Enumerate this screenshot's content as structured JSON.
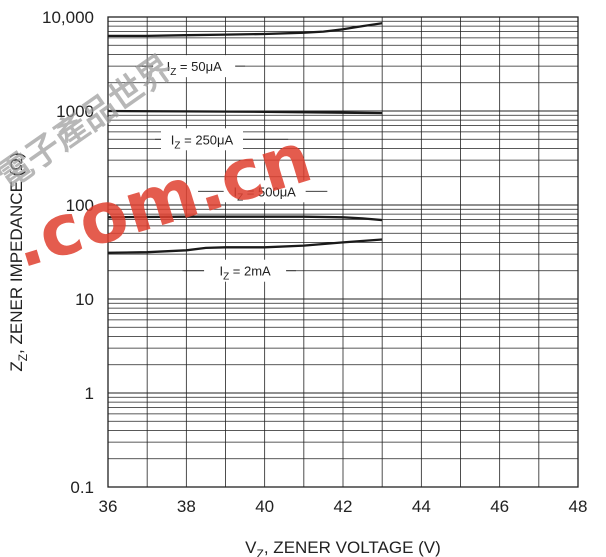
{
  "chart_data": {
    "type": "line",
    "xlabel_prefix": "V",
    "xlabel_sub": "Z",
    "xlabel_rest": ", ZENER VOLTAGE (V)",
    "ylabel_prefix": "Z",
    "ylabel_sub": "Z",
    "ylabel_rest": ", ZENER IMPEDANCE (Ω)",
    "xlim": [
      36,
      48
    ],
    "ylim": [
      0.1,
      10000
    ],
    "y_scale": "log",
    "grid": true,
    "x_ticks": [
      "36",
      "38",
      "40",
      "42",
      "44",
      "46",
      "48"
    ],
    "y_ticks": [
      {
        "value": 10000,
        "label": "10,000"
      },
      {
        "value": 1000,
        "label": "1000"
      },
      {
        "value": 100,
        "label": "100"
      },
      {
        "value": 10,
        "label": "10"
      },
      {
        "value": 1,
        "label": "1"
      },
      {
        "value": 0.1,
        "label": "0.1"
      }
    ],
    "series": [
      {
        "name": "IZ = 50μA",
        "label_main": "I",
        "label_sub": "Z",
        "label_rest": " = 50μA",
        "x": [
          36,
          37,
          38,
          39,
          40,
          41,
          41.5,
          42,
          42.5,
          43
        ],
        "y": [
          6300,
          6300,
          6400,
          6500,
          6600,
          6800,
          7000,
          7400,
          8000,
          8600
        ]
      },
      {
        "name": "IZ = 250μA",
        "label_main": "I",
        "label_sub": "Z",
        "label_rest": " = 250μA",
        "x": [
          36,
          38,
          40,
          42,
          43
        ],
        "y": [
          1000,
          990,
          980,
          960,
          950
        ]
      },
      {
        "name": "IZ = 500μA",
        "label_main": "I",
        "label_sub": "Z",
        "label_rest": " = 500μA",
        "x": [
          36,
          38,
          40,
          41,
          42,
          42.5,
          43
        ],
        "y": [
          74,
          75,
          75,
          75,
          74,
          72,
          69
        ]
      },
      {
        "name": "IZ = 2mA",
        "label_main": "I",
        "label_sub": "Z",
        "label_rest": " = 2mA",
        "x": [
          36,
          37,
          38,
          38.5,
          39,
          40,
          41,
          42,
          43
        ],
        "y": [
          31,
          31.5,
          33,
          35,
          35.5,
          35.5,
          37,
          40,
          43
        ]
      }
    ]
  },
  "watermark": {
    "latin": ".com.cn",
    "chinese": "電子產品世界"
  }
}
